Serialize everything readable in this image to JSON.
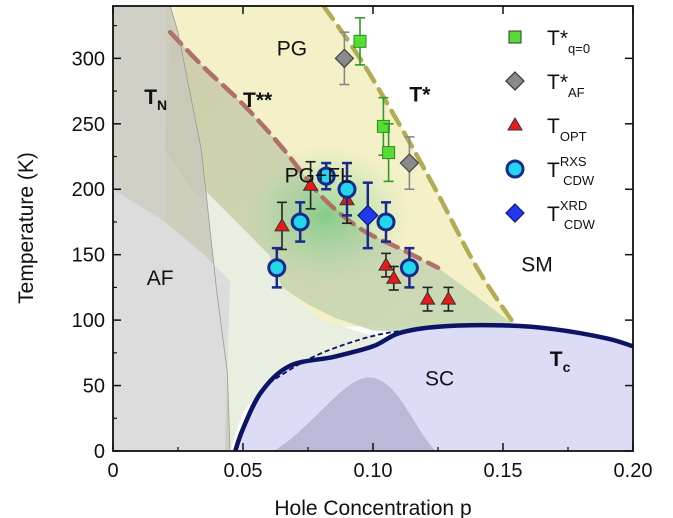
{
  "chart_data": {
    "type": "scatter",
    "xlabel": "Hole Concentration p",
    "ylabel": "Temperature (K)",
    "xlim": [
      0,
      0.2
    ],
    "ylim": [
      0,
      340
    ],
    "x_ticks": [
      "0",
      "0.05",
      "0.10",
      "0.15",
      "0.20"
    ],
    "x_tick_values": [
      0,
      0.05,
      0.1,
      0.15,
      0.2
    ],
    "y_ticks": [
      "0",
      "50",
      "100",
      "150",
      "200",
      "250",
      "300"
    ],
    "y_tick_values": [
      0,
      50,
      100,
      150,
      200,
      250,
      300
    ],
    "legend_position": "top-right",
    "legend": [
      {
        "key": "tq0",
        "main": "T*",
        "sub": "q=0",
        "sup": "",
        "marker": "square",
        "color": "#55dd33"
      },
      {
        "key": "taf",
        "main": "T*",
        "sub": "AF",
        "sup": "",
        "marker": "diamond",
        "color": "#8a8a8a"
      },
      {
        "key": "topt",
        "main": "T",
        "sub": "OPT",
        "sup": "",
        "marker": "triangle",
        "color": "#e81a1a"
      },
      {
        "key": "rxs",
        "main": "T",
        "sub": "CDW",
        "sup": "RXS",
        "marker": "circle",
        "color": "#22d6ec"
      },
      {
        "key": "xrd",
        "main": "T",
        "sub": "CDW",
        "sup": "XRD",
        "marker": "diamond",
        "color": "#2238ee"
      }
    ],
    "series": [
      {
        "key": "tq0",
        "marker": "square",
        "color": "#55dd33",
        "stroke": "#2f8a1e",
        "err_color": "#2f9a2a",
        "points": [
          {
            "x": 0.095,
            "y": 313,
            "err": 18
          },
          {
            "x": 0.104,
            "y": 248,
            "err": 22
          },
          {
            "x": 0.106,
            "y": 228,
            "err": 22
          }
        ]
      },
      {
        "key": "taf",
        "marker": "diamond",
        "color": "#8a8a8a",
        "stroke": "#444444",
        "err_color": "#888888",
        "points": [
          {
            "x": 0.089,
            "y": 300,
            "err": 20
          },
          {
            "x": 0.114,
            "y": 220,
            "err": 20
          }
        ]
      },
      {
        "key": "topt",
        "marker": "triangle",
        "color": "#e81a1a",
        "stroke": "#333333",
        "err_color": "#222222",
        "points": [
          {
            "x": 0.065,
            "y": 172,
            "err": 18
          },
          {
            "x": 0.076,
            "y": 203,
            "err": 18
          },
          {
            "x": 0.09,
            "y": 192,
            "err": 18
          },
          {
            "x": 0.105,
            "y": 142,
            "err": 9
          },
          {
            "x": 0.108,
            "y": 132,
            "err": 9
          },
          {
            "x": 0.121,
            "y": 116,
            "err": 9
          },
          {
            "x": 0.129,
            "y": 116,
            "err": 9
          }
        ]
      },
      {
        "key": "rxs",
        "marker": "circle",
        "color": "#22d6ec",
        "stroke": "#1a2a8a",
        "err_color": "#1a2a8a",
        "points": [
          {
            "x": 0.063,
            "y": 140,
            "err": 15
          },
          {
            "x": 0.072,
            "y": 175,
            "err": 15
          },
          {
            "x": 0.082,
            "y": 210,
            "err": 10
          },
          {
            "x": 0.09,
            "y": 200,
            "err": 20
          },
          {
            "x": 0.105,
            "y": 175,
            "err": 15
          },
          {
            "x": 0.114,
            "y": 140,
            "err": 15
          }
        ]
      },
      {
        "key": "xrd",
        "marker": "diamond",
        "color": "#2238ee",
        "stroke": "#0d1a7a",
        "err_color": "#1a2a8a",
        "points": [
          {
            "x": 0.098,
            "y": 180,
            "err": 25
          }
        ]
      }
    ],
    "lines": [
      {
        "name": "T*",
        "style": "dashed",
        "color": "#b0ad55",
        "points": [
          [
            0.081,
            340
          ],
          [
            0.095,
            300
          ],
          [
            0.11,
            250
          ],
          [
            0.124,
            200
          ],
          [
            0.14,
            140
          ],
          [
            0.155,
            95
          ]
        ]
      },
      {
        "name": "T**",
        "style": "dashed",
        "color": "#b07068",
        "points": [
          [
            0.022,
            320
          ],
          [
            0.035,
            293
          ],
          [
            0.05,
            265
          ],
          [
            0.065,
            232
          ],
          [
            0.08,
            195
          ],
          [
            0.095,
            170
          ],
          [
            0.11,
            155
          ],
          [
            0.125,
            140
          ]
        ]
      },
      {
        "name": "Tc",
        "style": "solid",
        "color": "#0d1466",
        "points": [
          [
            0.047,
            0
          ],
          [
            0.05,
            17
          ],
          [
            0.057,
            45
          ],
          [
            0.068,
            65
          ],
          [
            0.085,
            72
          ],
          [
            0.1,
            80
          ],
          [
            0.11,
            90
          ],
          [
            0.125,
            95
          ],
          [
            0.15,
            96
          ],
          [
            0.17,
            93
          ],
          [
            0.19,
            86
          ],
          [
            0.2,
            80
          ]
        ]
      },
      {
        "name": "Tc-extrapolated",
        "style": "dotted",
        "color": "#0d1466",
        "points": [
          [
            0.06,
            52
          ],
          [
            0.075,
            70
          ],
          [
            0.09,
            82
          ],
          [
            0.105,
            90
          ],
          [
            0.125,
            95
          ]
        ]
      }
    ],
    "regions": [
      {
        "label": "PG",
        "color": "#f4f0c8",
        "x": 0.063,
        "y": 302
      },
      {
        "label": "PG+FL",
        "color": "#d6dcc0",
        "x": 0.066,
        "y": 205
      },
      {
        "label": "AF",
        "color": "#dcdcdc",
        "x": 0.013,
        "y": 127
      },
      {
        "label": "SM",
        "color": "#ffffff",
        "x": 0.157,
        "y": 137
      },
      {
        "label": "SC",
        "color": "#dcdcf6",
        "x": 0.12,
        "y": 50
      }
    ],
    "line_labels": [
      {
        "main": "T",
        "sub": "N",
        "x": 0.012,
        "y": 265
      },
      {
        "main": "T**",
        "sub": "",
        "x": 0.05,
        "y": 263
      },
      {
        "main": "T*",
        "sub": "",
        "x": 0.114,
        "y": 267
      },
      {
        "main": "T",
        "sub": "c",
        "x": 0.168,
        "y": 65
      }
    ]
  }
}
